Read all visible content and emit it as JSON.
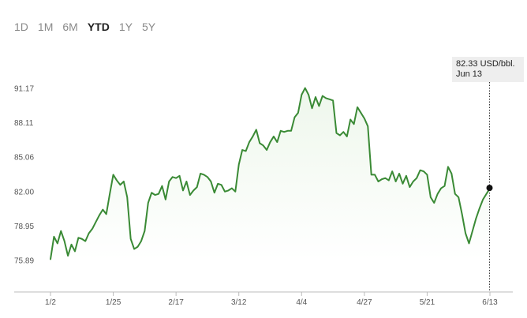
{
  "range_tabs": [
    {
      "label": "1D",
      "active": false
    },
    {
      "label": "1M",
      "active": false
    },
    {
      "label": "6M",
      "active": false
    },
    {
      "label": "YTD",
      "active": true
    },
    {
      "label": "1Y",
      "active": false
    },
    {
      "label": "5Y",
      "active": false
    }
  ],
  "tooltip": {
    "value": "82.33 USD/bbl.",
    "date": "Jun 13"
  },
  "colors": {
    "line": "#3a8a35",
    "fill": "#eef7ec",
    "axis": "#bbbbbb",
    "marker": "#111111"
  },
  "chart_data": {
    "type": "area",
    "title": "",
    "xlabel": "",
    "ylabel": "",
    "ylim": [
      74.8,
      92.2
    ],
    "y_ticks": [
      "75.89",
      "78.95",
      "82.00",
      "85.06",
      "88.11",
      "91.17"
    ],
    "x_ticks": [
      "1/2",
      "1/25",
      "2/17",
      "3/12",
      "4/4",
      "4/27",
      "5/21",
      "6/13"
    ],
    "x_start": "1/2",
    "x_end": "6/13",
    "grid": false,
    "marker_value": 82.33,
    "series": [
      {
        "values": [
          76.0,
          78.0,
          77.4,
          78.5,
          77.6,
          76.3,
          77.3,
          76.7,
          77.9,
          77.8,
          77.6,
          78.3,
          78.7,
          79.3,
          79.9,
          80.4,
          80.0,
          81.8,
          83.5,
          83.0,
          82.6,
          82.9,
          81.5,
          77.8,
          76.9,
          77.1,
          77.6,
          78.5,
          81.0,
          81.9,
          81.7,
          81.8,
          82.5,
          81.3,
          82.9,
          83.3,
          83.2,
          83.4,
          82.1,
          82.9,
          81.7,
          82.1,
          82.4,
          83.6,
          83.5,
          83.3,
          82.9,
          81.9,
          82.7,
          82.6,
          82.0,
          82.1,
          82.3,
          82.0,
          84.4,
          85.7,
          85.6,
          86.4,
          86.9,
          87.5,
          86.3,
          86.1,
          85.7,
          86.4,
          86.9,
          86.4,
          87.4,
          87.3,
          87.4,
          87.4,
          88.6,
          89.0,
          90.6,
          91.2,
          90.6,
          89.4,
          90.4,
          89.6,
          90.5,
          90.3,
          90.2,
          90.1,
          87.2,
          87.0,
          87.3,
          86.9,
          88.4,
          88.0,
          89.5,
          89.0,
          88.5,
          87.8,
          83.5,
          83.5,
          82.9,
          83.1,
          83.2,
          83.0,
          83.8,
          82.9,
          83.6,
          82.7,
          83.4,
          82.4,
          82.9,
          83.2,
          83.9,
          83.8,
          83.5,
          81.5,
          81.0,
          81.8,
          82.3,
          82.5,
          84.2,
          83.6,
          81.8,
          81.5,
          80.0,
          78.3,
          77.4,
          78.5,
          79.6,
          80.5,
          81.3,
          81.8,
          82.3
        ]
      }
    ]
  }
}
